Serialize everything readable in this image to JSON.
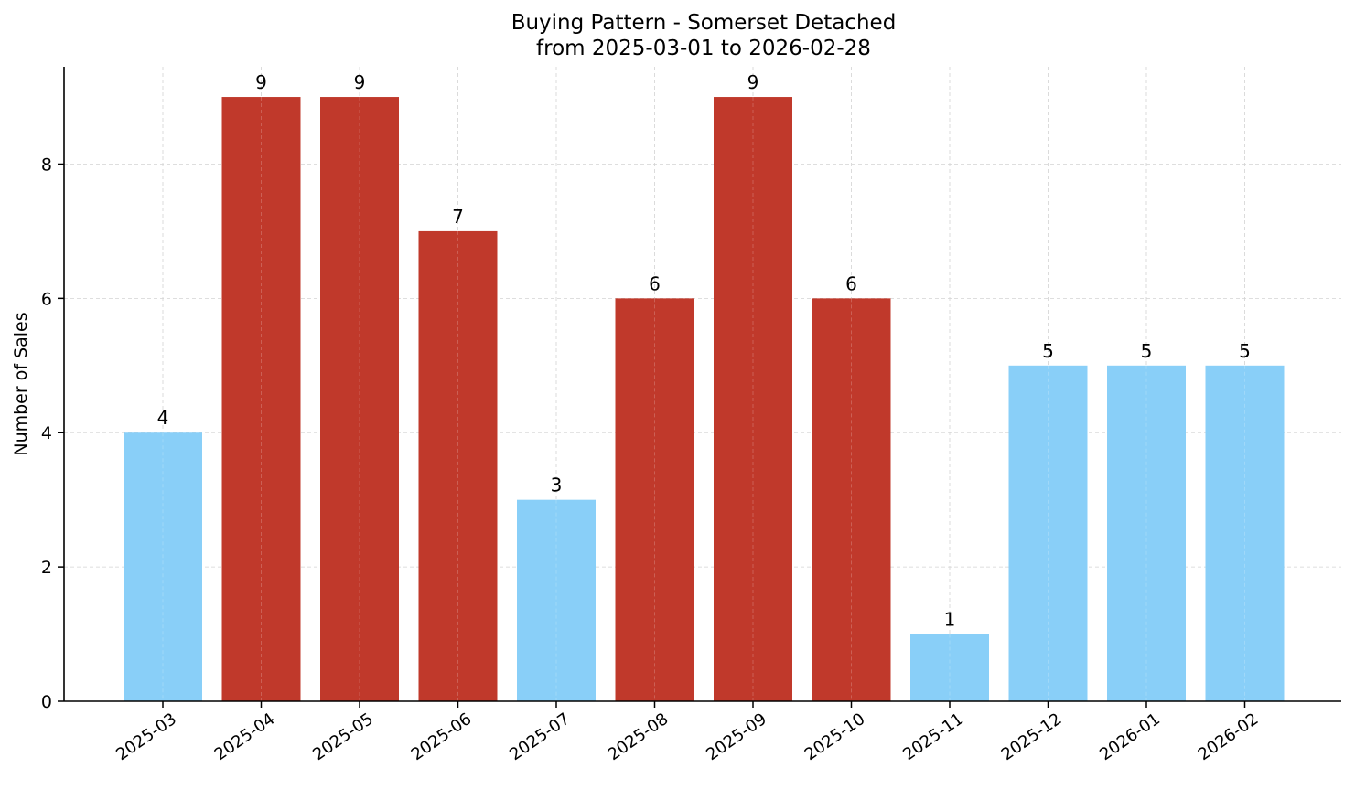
{
  "chart_data": {
    "type": "bar",
    "title": "Buying Pattern - Somerset Detached",
    "subtitle": "from 2025-03-01 to 2026-02-28",
    "xlabel": "",
    "ylabel": "Number of Sales",
    "categories": [
      "2025-03",
      "2025-04",
      "2025-05",
      "2025-06",
      "2025-07",
      "2025-08",
      "2025-09",
      "2025-10",
      "2025-11",
      "2025-12",
      "2026-01",
      "2026-02"
    ],
    "values": [
      4,
      9,
      9,
      7,
      3,
      6,
      9,
      6,
      1,
      5,
      5,
      5
    ],
    "bar_colors": [
      "#89CFF8",
      "#C0392B",
      "#C0392B",
      "#C0392B",
      "#89CFF8",
      "#C0392B",
      "#C0392B",
      "#C0392B",
      "#89CFF8",
      "#89CFF8",
      "#89CFF8",
      "#89CFF8"
    ],
    "data_labels": [
      "4",
      "9",
      "9",
      "7",
      "3",
      "6",
      "9",
      "6",
      "1",
      "5",
      "5",
      "5"
    ],
    "yticks": [
      0,
      2,
      4,
      6,
      8
    ],
    "ylim": [
      0,
      9.45
    ],
    "grid": true,
    "legend": null
  },
  "colors": {
    "high": "#C0392B",
    "low": "#89CFF8",
    "grid": "#d3d3d3",
    "axis": "#000000"
  }
}
